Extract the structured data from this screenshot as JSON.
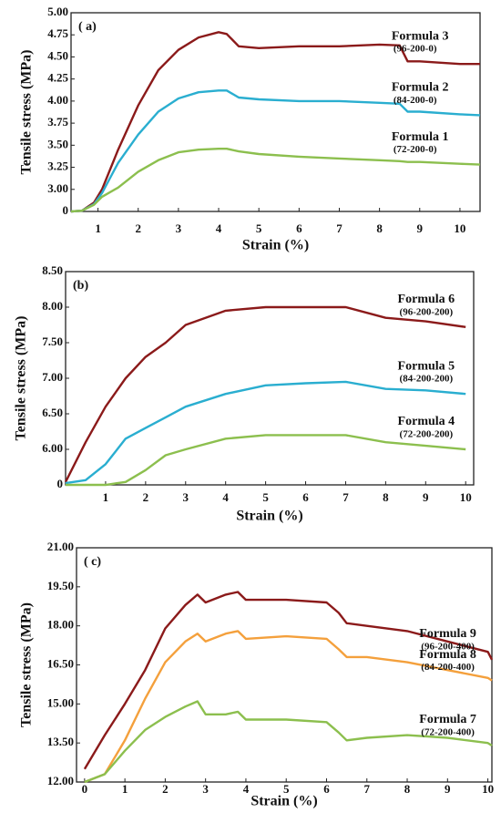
{
  "chart_data": [
    {
      "type": "line",
      "panel": "( a)",
      "xlabel": "Strain (%)",
      "ylabel": "Tensile stress (MPa)",
      "yscale": "tick-spaced",
      "x": [
        0.33,
        0.6,
        0.9,
        1.1,
        1.5,
        2,
        2.5,
        3,
        3.5,
        4,
        4.2,
        4.5,
        5,
        6,
        7,
        8,
        8.5,
        8.7,
        9,
        10,
        10.5
      ],
      "series": [
        {
          "name": "Formula 3",
          "sublabel": "(96-200-0)",
          "color": "#8b1a1a",
          "values": [
            0,
            0.1,
            1.2,
            3.0,
            3.45,
            3.95,
            4.35,
            4.58,
            4.72,
            4.78,
            4.76,
            4.62,
            4.6,
            4.62,
            4.62,
            4.64,
            4.63,
            4.45,
            4.45,
            4.42,
            4.42
          ]
        },
        {
          "name": "Formula 2",
          "sublabel": "(84-200-0)",
          "color": "#2aaed0",
          "values": [
            0,
            0.1,
            1.0,
            2.5,
            3.3,
            3.62,
            3.88,
            4.03,
            4.1,
            4.12,
            4.12,
            4.04,
            4.02,
            4.0,
            4.0,
            3.98,
            3.97,
            3.88,
            3.88,
            3.85,
            3.84
          ]
        },
        {
          "name": "Formula 1",
          "sublabel": "(72-200-0)",
          "color": "#8cbf4e",
          "values": [
            0,
            0.1,
            0.9,
            2.0,
            3.02,
            3.2,
            3.33,
            3.42,
            3.45,
            3.46,
            3.46,
            3.43,
            3.4,
            3.37,
            3.35,
            3.33,
            3.32,
            3.31,
            3.31,
            3.29,
            3.28
          ]
        }
      ],
      "xlim": [
        0.33,
        10.5
      ],
      "xticks": [
        1,
        2,
        3,
        4,
        5,
        6,
        7,
        8,
        9,
        10
      ],
      "ylim": [
        0,
        5
      ],
      "yticks": [
        0,
        {
          "value": 3,
          "label": "3.00"
        },
        {
          "value": 3.25,
          "label": "3.25"
        },
        {
          "value": 3.5,
          "label": "3.50"
        },
        {
          "value": 3.75,
          "label": "3.75"
        },
        {
          "value": 4,
          "label": "4.00"
        },
        {
          "value": 4.25,
          "label": "4.25"
        },
        {
          "value": 4.5,
          "label": "4.50"
        },
        {
          "value": 4.75,
          "label": "4.75"
        },
        {
          "value": 5,
          "label": "5.00"
        }
      ]
    },
    {
      "type": "line",
      "panel": "(b)",
      "xlabel": "Strain (%)",
      "ylabel": "Tensile stress (MPa)",
      "yscale": "tick-spaced",
      "x": [
        0,
        0.5,
        1,
        1.5,
        2,
        2.5,
        3,
        4,
        5,
        6,
        7,
        8,
        9,
        10
      ],
      "series": [
        {
          "name": "Formula 6",
          "sublabel": "(96-200-200)",
          "color": "#8b1a1a",
          "values": [
            0.5,
            6.1,
            6.6,
            7.0,
            7.3,
            7.5,
            7.75,
            7.95,
            8.0,
            8.0,
            8.0,
            7.85,
            7.8,
            7.72
          ]
        },
        {
          "name": "Formula 5",
          "sublabel": "(84-200-200)",
          "color": "#2aaed0",
          "values": [
            0.3,
            0.8,
            3.5,
            6.15,
            6.3,
            6.45,
            6.6,
            6.78,
            6.9,
            6.93,
            6.95,
            6.85,
            6.83,
            6.78
          ]
        },
        {
          "name": "Formula 4",
          "sublabel": "(72-200-200)",
          "color": "#8cbf4e",
          "values": [
            0,
            0,
            0,
            0.5,
            2.5,
            5.0,
            6.0,
            6.15,
            6.2,
            6.2,
            6.2,
            6.1,
            6.05,
            6.0
          ]
        }
      ],
      "xlim": [
        0,
        10.2
      ],
      "xticks": [
        1,
        2,
        3,
        4,
        5,
        6,
        7,
        8,
        9,
        10
      ],
      "ylim": [
        0,
        8.5
      ],
      "yticks": [
        0,
        {
          "value": 6,
          "label": "6.00"
        },
        {
          "value": 6.5,
          "label": "6.50"
        },
        {
          "value": 7,
          "label": "7.00"
        },
        {
          "value": 7.5,
          "label": "7.50"
        },
        {
          "value": 8,
          "label": "8.00"
        },
        {
          "value": 8.5,
          "label": "8.50"
        }
      ]
    },
    {
      "type": "line",
      "panel": "( c)",
      "xlabel": "Strain (%)",
      "ylabel": "Tensile stress (MPa)",
      "yscale": "linear",
      "x": [
        0,
        0.5,
        1,
        1.5,
        2,
        2.5,
        2.8,
        3,
        3.5,
        3.8,
        4,
        5,
        6,
        6.3,
        6.5,
        7,
        8,
        9,
        10,
        10.1
      ],
      "series": [
        {
          "name": "Formula 9",
          "sublabel": "(96-200-400)",
          "color": "#8b1a1a",
          "values": [
            12.5,
            13.8,
            15.0,
            16.3,
            17.9,
            18.8,
            19.2,
            18.9,
            19.2,
            19.3,
            19.0,
            19.0,
            18.9,
            18.5,
            18.1,
            18.0,
            17.8,
            17.4,
            17.0,
            16.7
          ]
        },
        {
          "name": "Formula 8",
          "sublabel": "(84-200-400)",
          "color": "#f4a03c",
          "values": [
            12.0,
            12.3,
            13.6,
            15.2,
            16.6,
            17.4,
            17.7,
            17.4,
            17.7,
            17.8,
            17.5,
            17.6,
            17.5,
            17.1,
            16.8,
            16.8,
            16.6,
            16.3,
            16.0,
            15.9
          ]
        },
        {
          "name": "Formula 7",
          "sublabel": "(72-200-400)",
          "color": "#8cbf4e",
          "values": [
            12.0,
            12.3,
            13.2,
            14.0,
            14.5,
            14.9,
            15.1,
            14.6,
            14.6,
            14.7,
            14.4,
            14.4,
            14.3,
            13.9,
            13.6,
            13.7,
            13.8,
            13.7,
            13.5,
            13.4
          ]
        }
      ],
      "xlim": [
        -0.2,
        10.1
      ],
      "xticks": [
        0,
        1,
        2,
        3,
        4,
        5,
        6,
        7,
        8,
        9,
        10
      ],
      "ylim": [
        12,
        21
      ],
      "yticks": [
        {
          "value": 12,
          "label": "12.00"
        },
        {
          "value": 13.5,
          "label": "13.50"
        },
        {
          "value": 15,
          "label": "15.00"
        },
        {
          "value": 16.5,
          "label": "16.50"
        },
        {
          "value": 18,
          "label": "18.00"
        },
        {
          "value": 19.5,
          "label": "19.50"
        },
        {
          "value": 21,
          "label": "21.00"
        }
      ]
    }
  ]
}
